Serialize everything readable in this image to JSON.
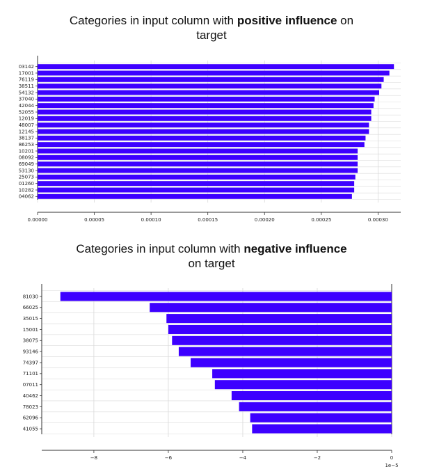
{
  "titles": {
    "positive": {
      "prefix": "Categories in input column with ",
      "bold": "positive influence",
      "suffix": " on",
      "line2": "target"
    },
    "negative": {
      "prefix": "Categories in input column with ",
      "bold": "negative influence",
      "line2": "on target"
    }
  },
  "colors": {
    "bar": "#3d00ff",
    "grid": "#d9d9d9",
    "axis": "#333333"
  },
  "chart_data": [
    {
      "type": "bar",
      "orientation": "horizontal",
      "title": "Categories in input column with positive influence on target",
      "categories": [
        "03142",
        "17001",
        "76119",
        "38511",
        "54132",
        "37040",
        "42044",
        "52055",
        "12019",
        "48007",
        "12145",
        "38137",
        "86253",
        "10201",
        "08092",
        "69049",
        "53130",
        "25073",
        "01260",
        "10282",
        "04062"
      ],
      "values": [
        0.000314,
        0.00031,
        0.000305,
        0.000303,
        0.000301,
        0.000297,
        0.000296,
        0.000294,
        0.000294,
        0.000292,
        0.000292,
        0.000289,
        0.000288,
        0.000282,
        0.000282,
        0.000282,
        0.000282,
        0.00028,
        0.000279,
        0.000279,
        0.000277
      ],
      "xlim": [
        0,
        0.00032
      ],
      "xticks": [
        0,
        5e-05,
        0.0001,
        0.00015,
        0.0002,
        0.00025,
        0.0003
      ],
      "xtick_labels": [
        "0.00000",
        "0.00005",
        "0.00010",
        "0.00015",
        "0.00020",
        "0.00025",
        "0.00030"
      ],
      "grid": true
    },
    {
      "type": "bar",
      "orientation": "horizontal",
      "title": "Categories in input column with negative influence on target",
      "categories": [
        "81030",
        "66025",
        "35015",
        "15001",
        "38075",
        "93146",
        "74397",
        "71101",
        "07011",
        "40462",
        "78023",
        "62096",
        "41055"
      ],
      "values": [
        -8.9e-05,
        -6.5e-05,
        -6.05e-05,
        -6e-05,
        -5.9e-05,
        -5.72e-05,
        -5.4e-05,
        -4.82e-05,
        -4.75e-05,
        -4.3e-05,
        -4.1e-05,
        -3.8e-05,
        -3.75e-05
      ],
      "xlim": [
        -9.4e-05,
        0
      ],
      "xticks": [
        -8e-05,
        -6e-05,
        -4e-05,
        -2e-05,
        0
      ],
      "xtick_labels": [
        "−8",
        "−6",
        "−4",
        "−2",
        "0"
      ],
      "x_offset_label": "1e−5",
      "grid": true
    }
  ]
}
